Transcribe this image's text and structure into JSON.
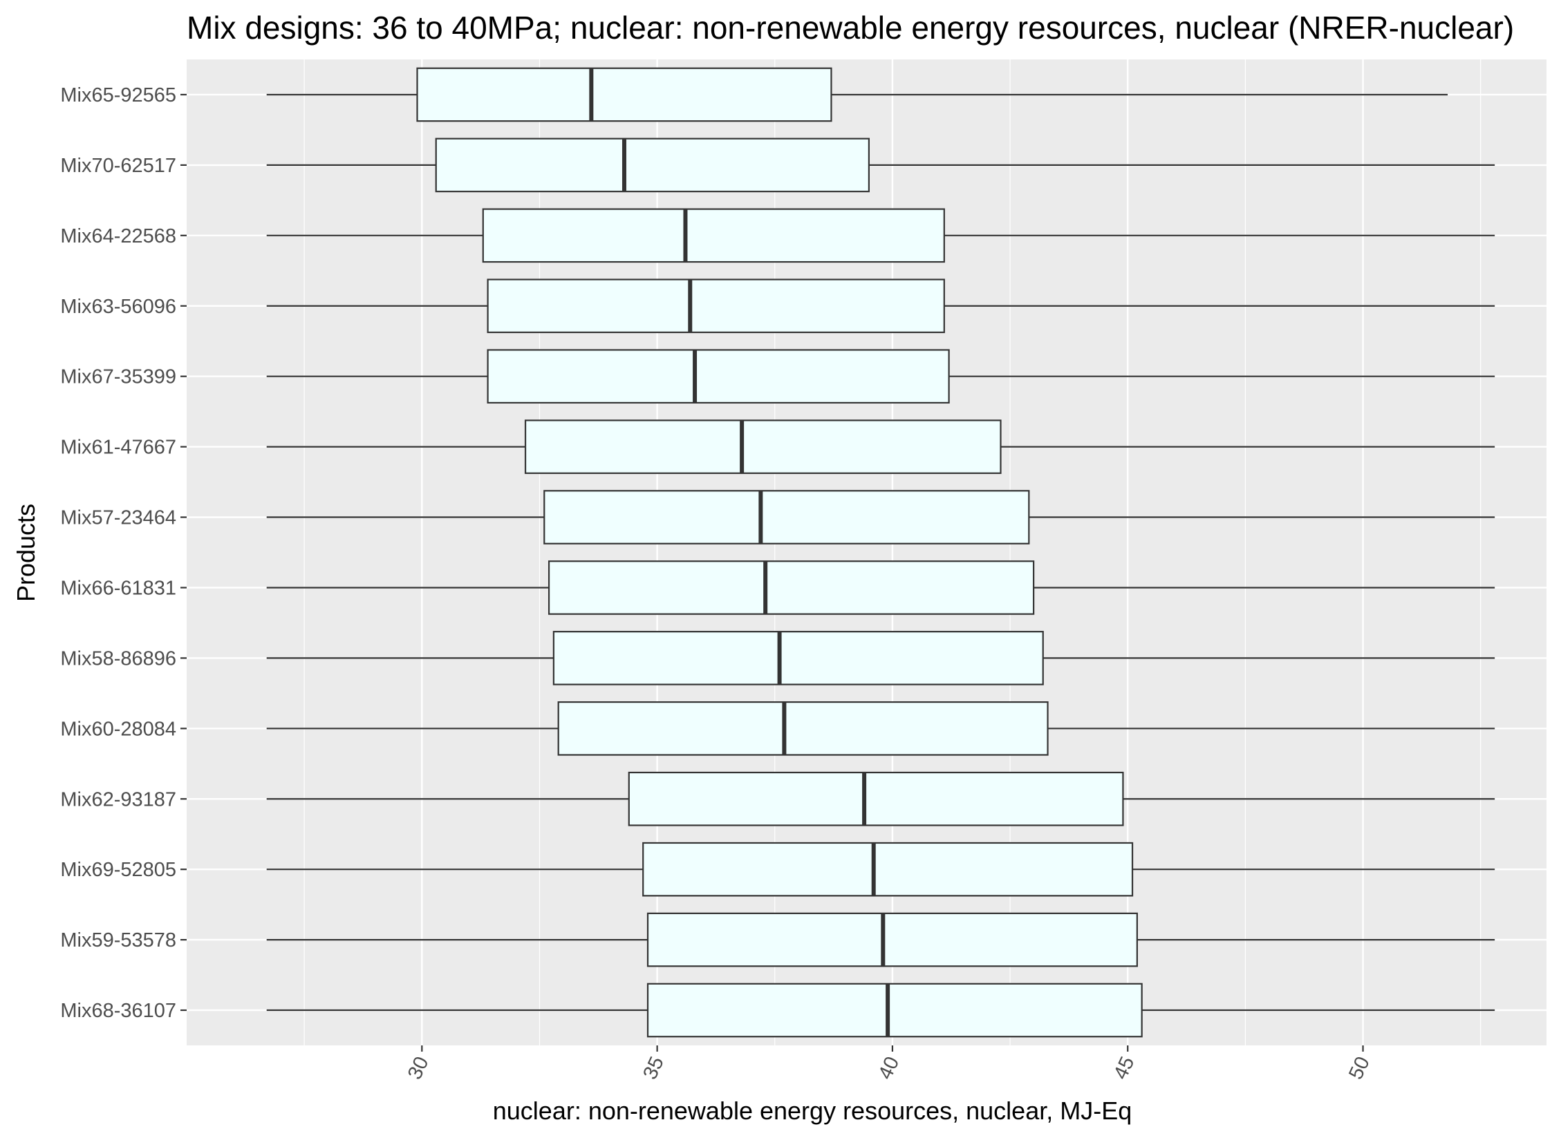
{
  "chart_data": {
    "type": "boxplot",
    "orientation": "horizontal",
    "title": "Mix designs: 36 to 40MPa; nuclear: non-renewable energy resources, nuclear (NRER-nuclear)",
    "xlabel": "nuclear: non-renewable energy resources, nuclear, MJ-Eq",
    "ylabel": "Products",
    "xlim": [
      25.0,
      53.9
    ],
    "xticks": [
      30,
      35,
      40,
      45,
      50
    ],
    "xtick_labels": [
      "30",
      "35",
      "40",
      "45",
      "50"
    ],
    "grid": true,
    "legend": "none",
    "colors": {
      "panel": "#ebebeb",
      "grid": "#ffffff",
      "box_fill": "#f0ffff",
      "box_stroke": "#333333",
      "whisker": "#333333",
      "median": "#333333",
      "tick_label": "#4d4d4d"
    },
    "categories": [
      "Mix65-92565",
      "Mix70-62517",
      "Mix64-22568",
      "Mix63-56096",
      "Mix67-35399",
      "Mix61-47667",
      "Mix57-23464",
      "Mix66-61831",
      "Mix58-86896",
      "Mix60-28084",
      "Mix62-93187",
      "Mix69-52805",
      "Mix59-53578",
      "Mix68-36107"
    ],
    "boxes": [
      {
        "category": "Mix65-92565",
        "min": 26.7,
        "q1": 29.9,
        "median": 33.6,
        "q3": 38.7,
        "max": 51.8
      },
      {
        "category": "Mix70-62517",
        "min": 26.7,
        "q1": 30.3,
        "median": 34.3,
        "q3": 39.5,
        "max": 52.8
      },
      {
        "category": "Mix64-22568",
        "min": 26.7,
        "q1": 31.3,
        "median": 35.6,
        "q3": 41.1,
        "max": 52.8
      },
      {
        "category": "Mix63-56096",
        "min": 26.7,
        "q1": 31.4,
        "median": 35.7,
        "q3": 41.1,
        "max": 52.8
      },
      {
        "category": "Mix67-35399",
        "min": 26.7,
        "q1": 31.4,
        "median": 35.8,
        "q3": 41.2,
        "max": 52.8
      },
      {
        "category": "Mix61-47667",
        "min": 26.7,
        "q1": 32.2,
        "median": 36.8,
        "q3": 42.3,
        "max": 52.8
      },
      {
        "category": "Mix57-23464",
        "min": 26.7,
        "q1": 32.6,
        "median": 37.2,
        "q3": 42.9,
        "max": 52.8
      },
      {
        "category": "Mix66-61831",
        "min": 26.7,
        "q1": 32.7,
        "median": 37.3,
        "q3": 43.0,
        "max": 52.8
      },
      {
        "category": "Mix58-86896",
        "min": 26.7,
        "q1": 32.8,
        "median": 37.6,
        "q3": 43.2,
        "max": 52.8
      },
      {
        "category": "Mix60-28084",
        "min": 26.7,
        "q1": 32.9,
        "median": 37.7,
        "q3": 43.3,
        "max": 52.8
      },
      {
        "category": "Mix62-93187",
        "min": 26.7,
        "q1": 34.4,
        "median": 39.4,
        "q3": 44.9,
        "max": 52.8
      },
      {
        "category": "Mix69-52805",
        "min": 26.7,
        "q1": 34.7,
        "median": 39.6,
        "q3": 45.1,
        "max": 52.8
      },
      {
        "category": "Mix59-53578",
        "min": 26.7,
        "q1": 34.8,
        "median": 39.8,
        "q3": 45.2,
        "max": 52.8
      },
      {
        "category": "Mix68-36107",
        "min": 26.7,
        "q1": 34.8,
        "median": 39.9,
        "q3": 45.3,
        "max": 52.8
      }
    ]
  }
}
